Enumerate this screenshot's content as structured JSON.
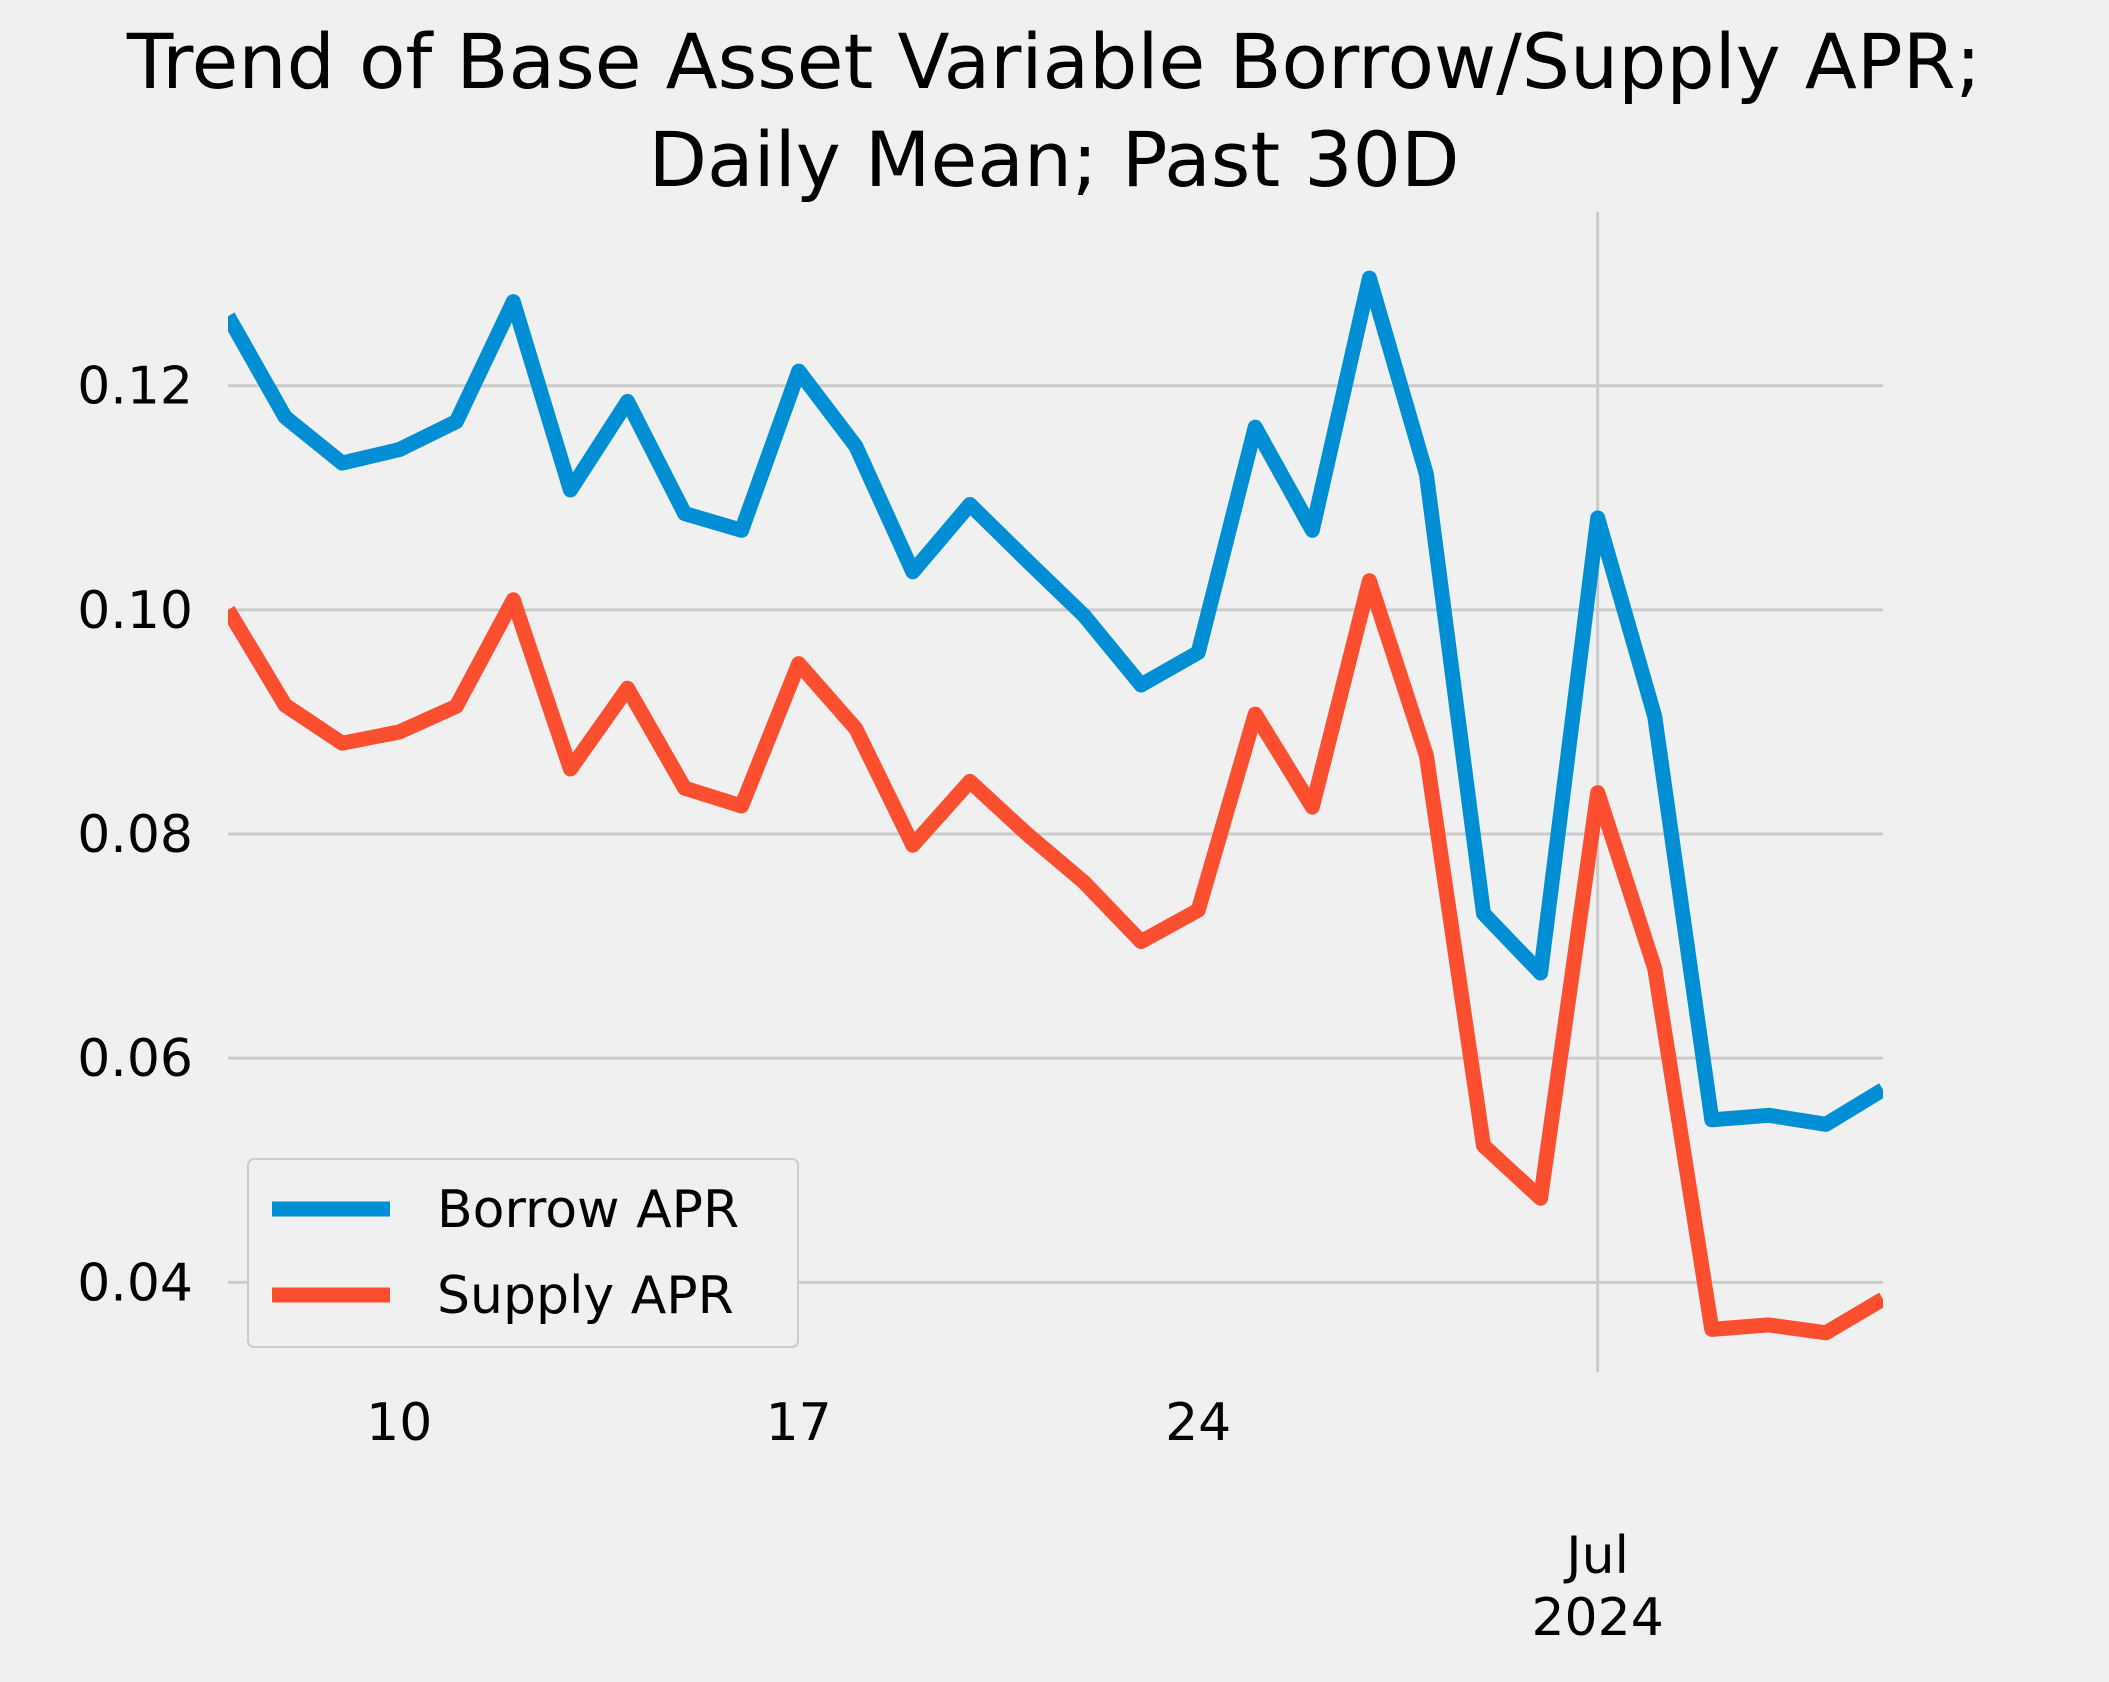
{
  "chart_data": {
    "type": "line",
    "title_line1": "Trend of Base Asset Variable Borrow/Supply APR;",
    "title_line2": "Daily Mean; Past 30D",
    "xlabel": "",
    "ylabel": "",
    "x": [
      "2024-06-07",
      "2024-06-08",
      "2024-06-09",
      "2024-06-10",
      "2024-06-11",
      "2024-06-12",
      "2024-06-13",
      "2024-06-14",
      "2024-06-15",
      "2024-06-16",
      "2024-06-17",
      "2024-06-18",
      "2024-06-19",
      "2024-06-20",
      "2024-06-21",
      "2024-06-22",
      "2024-06-23",
      "2024-06-24",
      "2024-06-25",
      "2024-06-26",
      "2024-06-27",
      "2024-06-28",
      "2024-06-29",
      "2024-06-30",
      "2024-07-01",
      "2024-07-02",
      "2024-07-03",
      "2024-07-04",
      "2024-07-05",
      "2024-07-06"
    ],
    "xlim": [
      "2024-06-07",
      "2024-07-06"
    ],
    "ylim": [
      0.032,
      0.1355
    ],
    "x_ticks": [
      {
        "date": "2024-06-10",
        "label": "10"
      },
      {
        "date": "2024-06-17",
        "label": "17"
      },
      {
        "date": "2024-06-24",
        "label": "24"
      },
      {
        "date": "2024-07-01",
        "label": "Jul",
        "label2": "2024"
      }
    ],
    "y_ticks": [
      {
        "value": 0.04,
        "label": "0.04"
      },
      {
        "value": 0.06,
        "label": "0.06"
      },
      {
        "value": 0.08,
        "label": "0.08"
      },
      {
        "value": 0.1,
        "label": "0.10"
      },
      {
        "value": 0.12,
        "label": "0.12"
      }
    ],
    "grid": true,
    "legend_position": "lower-left",
    "series": [
      {
        "name": "Borrow APR",
        "color": "#008fd5",
        "values": [
          0.1262,
          0.1172,
          0.1131,
          0.1143,
          0.1168,
          0.1275,
          0.1107,
          0.1186,
          0.1086,
          0.1071,
          0.1213,
          0.1146,
          0.1034,
          0.1094,
          0.1044,
          0.0995,
          0.0933,
          0.0962,
          0.1163,
          0.1071,
          0.1296,
          0.1121,
          0.0729,
          0.0676,
          0.1082,
          0.0905,
          0.0545,
          0.0549,
          0.0541,
          0.0572
        ]
      },
      {
        "name": "Supply APR",
        "color": "#fc4f30",
        "values": [
          0.1,
          0.0915,
          0.0881,
          0.0891,
          0.0914,
          0.1009,
          0.0858,
          0.093,
          0.0841,
          0.0825,
          0.0952,
          0.0894,
          0.079,
          0.0847,
          0.08,
          0.0757,
          0.0704,
          0.0732,
          0.0907,
          0.0824,
          0.1026,
          0.087,
          0.0522,
          0.0475,
          0.0837,
          0.068,
          0.0358,
          0.0362,
          0.0355,
          0.0385
        ]
      }
    ]
  }
}
